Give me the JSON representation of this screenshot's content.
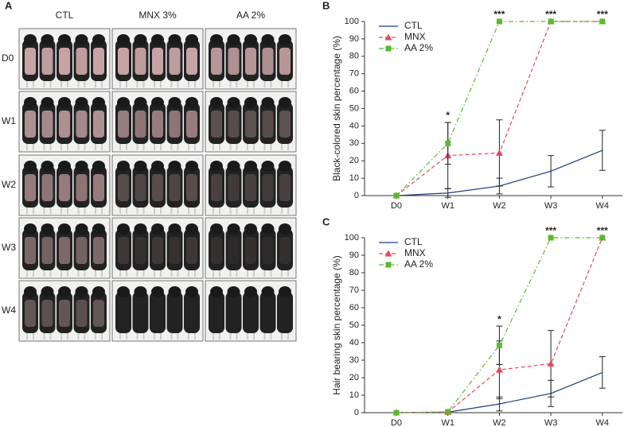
{
  "panel_a": {
    "panel": "A",
    "columns": [
      "CTL",
      "MNX 3%",
      "AA 2%"
    ],
    "rows": [
      "D0",
      "W1",
      "W2",
      "W3",
      "W4"
    ]
  },
  "chart_data": [
    {
      "type": "line",
      "panel": "B",
      "y_label": "Black-colored skin percentage (%)",
      "categories": [
        "D0",
        "W1",
        "W2",
        "W3",
        "W4"
      ],
      "ylim": [
        0,
        100
      ],
      "yticks": [
        0,
        10,
        20,
        30,
        40,
        50,
        60,
        70,
        80,
        90,
        100
      ],
      "legend": "upper-left",
      "series": [
        {
          "name": "CTL",
          "color": "#1f3a7a",
          "dash": "solid",
          "marker": "none",
          "values": [
            0,
            1.5,
            5.5,
            14,
            26
          ],
          "errors": [
            null,
            2.5,
            4.5,
            9,
            11.5
          ]
        },
        {
          "name": "MNX",
          "color": "#e8475f",
          "dash": "dashed",
          "marker": "triangle",
          "values": [
            0,
            23,
            24.5,
            100,
            100
          ],
          "errors": [
            null,
            19,
            19,
            null,
            null
          ]
        },
        {
          "name": "AA 2%",
          "color": "#5cb830",
          "dash": "dashdot",
          "marker": "square",
          "values": [
            0,
            30,
            100,
            100,
            100
          ],
          "errors": [
            null,
            12,
            null,
            null,
            null
          ]
        }
      ],
      "significance": [
        null,
        "*",
        "***",
        "***",
        "***"
      ]
    },
    {
      "type": "line",
      "panel": "C",
      "y_label": "Hair bearing skin percentage (%)",
      "categories": [
        "D0",
        "W1",
        "W2",
        "W3",
        "W4"
      ],
      "ylim": [
        0,
        100
      ],
      "yticks": [
        0,
        10,
        20,
        30,
        40,
        50,
        60,
        70,
        80,
        90,
        100
      ],
      "legend": "upper-left",
      "series": [
        {
          "name": "CTL",
          "color": "#1f3a7a",
          "dash": "solid",
          "marker": "none",
          "values": [
            0,
            0.3,
            5,
            11,
            23
          ],
          "errors": [
            null,
            null,
            4,
            7.5,
            9
          ]
        },
        {
          "name": "MNX",
          "color": "#e8475f",
          "dash": "dashed",
          "marker": "triangle",
          "values": [
            0,
            0.3,
            24.5,
            28,
            100
          ],
          "errors": [
            null,
            null,
            16.5,
            19,
            null
          ]
        },
        {
          "name": "AA 2%",
          "color": "#5cb830",
          "dash": "dashdot",
          "marker": "square",
          "values": [
            0,
            0.5,
            38.5,
            100,
            100
          ],
          "errors": [
            null,
            null,
            11,
            null,
            null
          ]
        }
      ],
      "significance": [
        null,
        null,
        "*",
        "***",
        "***"
      ]
    }
  ]
}
